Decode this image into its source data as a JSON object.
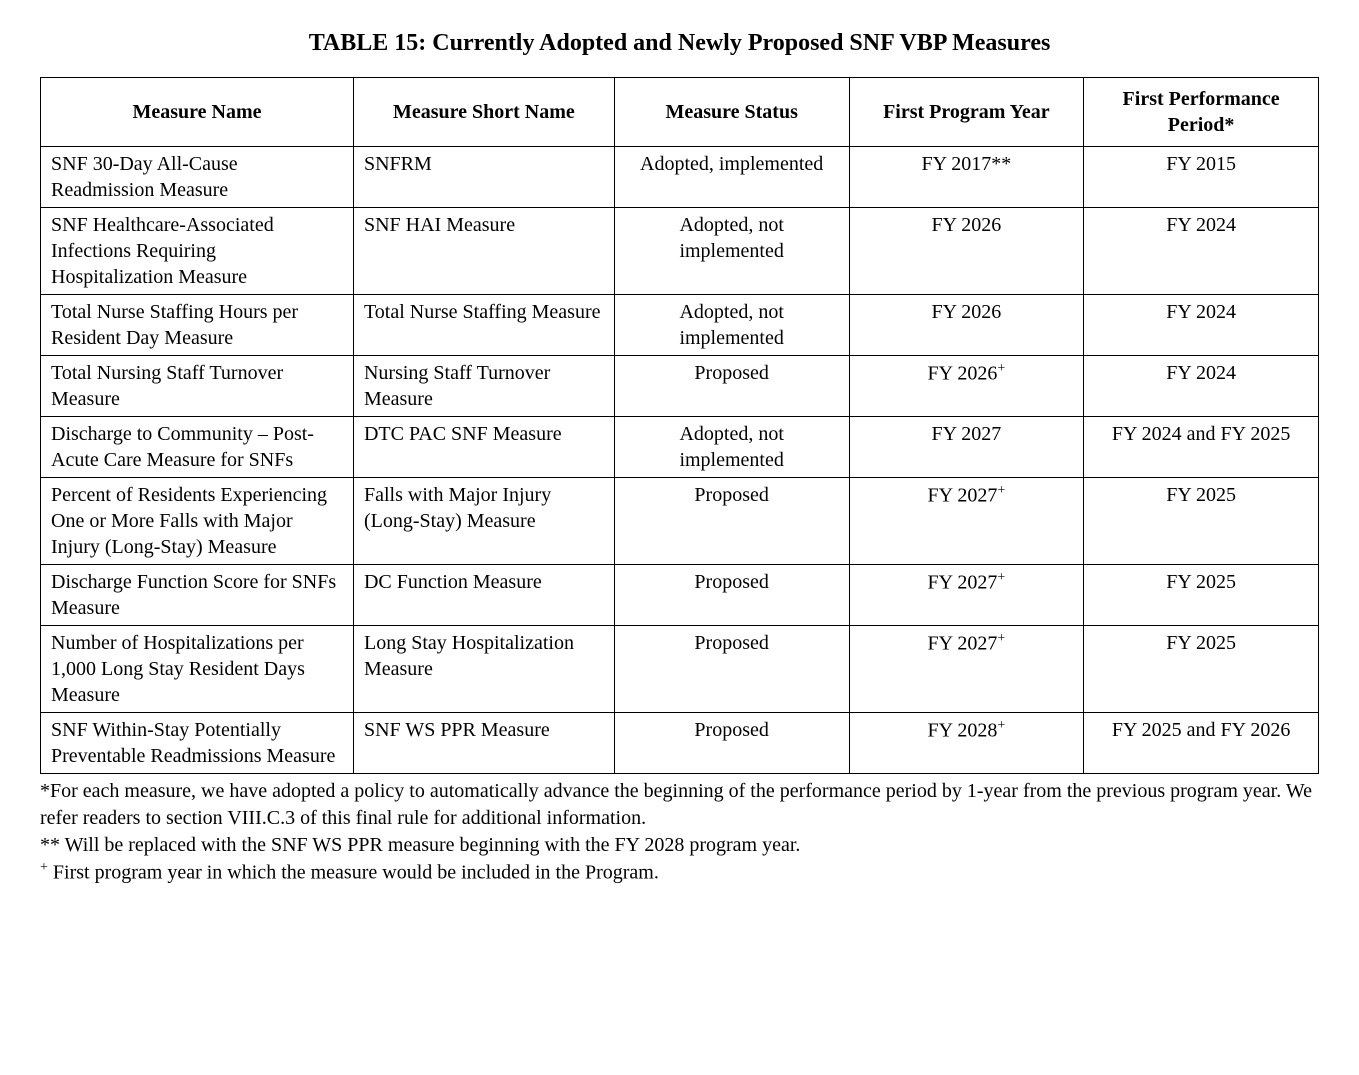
{
  "title": "TABLE 15:  Currently Adopted and Newly Proposed SNF VBP Measures",
  "columns": [
    "Measure Name",
    "Measure Short Name",
    "Measure Status",
    "First Program Year",
    "First Performance Period*"
  ],
  "rows": [
    {
      "name": "SNF 30-Day All-Cause Readmission Measure",
      "short": "SNFRM",
      "status": "Adopted, implemented",
      "program_year": "FY 2017**",
      "perf_period": "FY 2015"
    },
    {
      "name": "SNF Healthcare-Associated Infections Requiring Hospitalization Measure",
      "short": "SNF HAI Measure",
      "status": "Adopted, not implemented",
      "program_year": "FY 2026",
      "perf_period": "FY 2024"
    },
    {
      "name": "Total Nurse Staffing Hours per Resident Day Measure",
      "short": "Total Nurse Staffing Measure",
      "status": "Adopted, not implemented",
      "program_year": "FY 2026",
      "perf_period": "FY 2024"
    },
    {
      "name": "Total Nursing Staff Turnover Measure",
      "short": "Nursing Staff Turnover Measure",
      "status": "Proposed",
      "program_year": "FY 2026",
      "program_year_sup": "+",
      "perf_period": "FY 2024"
    },
    {
      "name": "Discharge to Community – Post-Acute Care Measure for SNFs",
      "short": "DTC PAC SNF Measure",
      "status": "Adopted, not implemented",
      "program_year": "FY 2027",
      "perf_period": "FY 2024 and FY 2025"
    },
    {
      "name": "Percent of Residents Experiencing One or More Falls with Major Injury (Long-Stay) Measure",
      "short": "Falls with Major Injury (Long-Stay) Measure",
      "status": "Proposed",
      "program_year": "FY 2027",
      "program_year_sup": "+",
      "perf_period": "FY 2025"
    },
    {
      "name": "Discharge Function Score for SNFs Measure",
      "short": "DC Function Measure",
      "status": "Proposed",
      "program_year": "FY 2027",
      "program_year_sup": "+",
      "perf_period": "FY 2025"
    },
    {
      "name": "Number of Hospitalizations per 1,000 Long Stay Resident Days Measure",
      "short": "Long Stay Hospitalization Measure",
      "status": "Proposed",
      "program_year": "FY 2027",
      "program_year_sup": "+",
      "perf_period": "FY 2025"
    },
    {
      "name": "SNF Within-Stay Potentially Preventable Readmissions Measure",
      "short": "SNF WS PPR Measure",
      "status": "Proposed",
      "program_year": "FY 2028",
      "program_year_sup": "+",
      "perf_period": "FY 2025 and FY 2026"
    }
  ],
  "footnotes": {
    "star": "*For each measure, we have adopted a policy to automatically advance the beginning of the performance period by 1-year from the previous program year.  We refer readers to section VIII.C.3 of this final rule for additional information.",
    "doublestar": "** Will be replaced with the SNF WS PPR measure beginning with the FY 2028 program year.",
    "plus_prefix": "+",
    "plus": " First program year in which the measure would be included in the Program."
  }
}
